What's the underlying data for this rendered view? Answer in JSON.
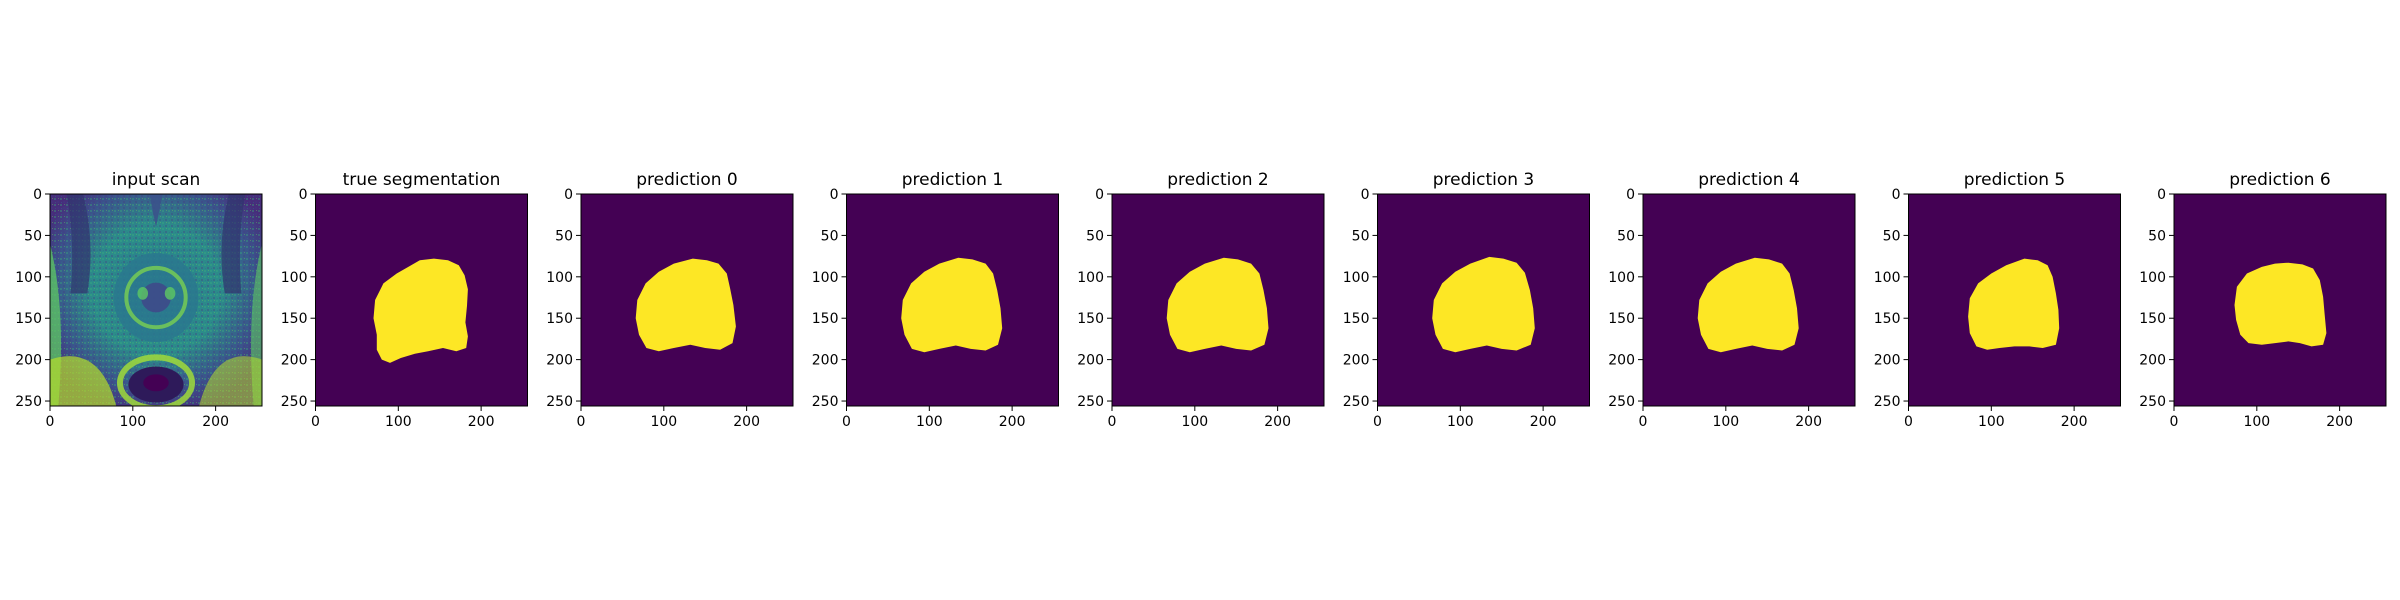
{
  "chart_data": {
    "type": "heatmap",
    "colormap": "viridis",
    "panels": [
      {
        "title": "input scan",
        "kind": "mri",
        "xticks": [
          0,
          100,
          200
        ],
        "yticks": [
          0,
          50,
          100,
          150,
          200,
          250
        ],
        "xlim": [
          0,
          256
        ],
        "ylim": [
          256,
          0
        ]
      },
      {
        "title": "true segmentation",
        "kind": "mask",
        "mask": [
          [
            143,
            78
          ],
          [
            160,
            80
          ],
          [
            173,
            86
          ],
          [
            180,
            98
          ],
          [
            184,
            115
          ],
          [
            183,
            135
          ],
          [
            181,
            155
          ],
          [
            184,
            172
          ],
          [
            182,
            186
          ],
          [
            170,
            190
          ],
          [
            154,
            186
          ],
          [
            136,
            190
          ],
          [
            120,
            193
          ],
          [
            103,
            198
          ],
          [
            90,
            204
          ],
          [
            80,
            200
          ],
          [
            74,
            188
          ],
          [
            74,
            170
          ],
          [
            70,
            150
          ],
          [
            72,
            128
          ],
          [
            82,
            108
          ],
          [
            98,
            96
          ],
          [
            112,
            88
          ],
          [
            126,
            80
          ]
        ],
        "xticks": [
          0,
          100,
          200
        ],
        "yticks": [
          0,
          50,
          100,
          150,
          200,
          250
        ],
        "xlim": [
          0,
          256
        ],
        "ylim": [
          256,
          0
        ]
      },
      {
        "title": "prediction 0",
        "kind": "mask",
        "mask": [
          [
            135,
            78
          ],
          [
            152,
            80
          ],
          [
            166,
            84
          ],
          [
            176,
            96
          ],
          [
            180,
            114
          ],
          [
            184,
            134
          ],
          [
            187,
            160
          ],
          [
            183,
            180
          ],
          [
            168,
            188
          ],
          [
            150,
            186
          ],
          [
            132,
            182
          ],
          [
            112,
            186
          ],
          [
            94,
            190
          ],
          [
            79,
            186
          ],
          [
            70,
            170
          ],
          [
            66,
            150
          ],
          [
            68,
            128
          ],
          [
            78,
            108
          ],
          [
            94,
            94
          ],
          [
            112,
            84
          ]
        ],
        "xticks": [
          0,
          100,
          200
        ],
        "yticks": [
          0,
          50,
          100,
          150,
          200,
          250
        ],
        "xlim": [
          0,
          256
        ],
        "ylim": [
          256,
          0
        ]
      },
      {
        "title": "prediction 1",
        "kind": "mask",
        "mask": [
          [
            135,
            77
          ],
          [
            152,
            79
          ],
          [
            168,
            84
          ],
          [
            177,
            96
          ],
          [
            182,
            116
          ],
          [
            186,
            138
          ],
          [
            188,
            162
          ],
          [
            183,
            182
          ],
          [
            168,
            189
          ],
          [
            150,
            187
          ],
          [
            132,
            183
          ],
          [
            112,
            187
          ],
          [
            94,
            191
          ],
          [
            79,
            187
          ],
          [
            70,
            170
          ],
          [
            66,
            150
          ],
          [
            68,
            128
          ],
          [
            78,
            108
          ],
          [
            94,
            94
          ],
          [
            112,
            84
          ]
        ],
        "xticks": [
          0,
          100,
          200
        ],
        "yticks": [
          0,
          50,
          100,
          150,
          200,
          250
        ],
        "xlim": [
          0,
          256
        ],
        "ylim": [
          256,
          0
        ]
      },
      {
        "title": "prediction 2",
        "kind": "mask",
        "mask": [
          [
            135,
            77
          ],
          [
            152,
            79
          ],
          [
            168,
            84
          ],
          [
            178,
            96
          ],
          [
            183,
            116
          ],
          [
            187,
            138
          ],
          [
            189,
            162
          ],
          [
            184,
            182
          ],
          [
            168,
            189
          ],
          [
            150,
            187
          ],
          [
            132,
            183
          ],
          [
            112,
            187
          ],
          [
            94,
            191
          ],
          [
            79,
            187
          ],
          [
            70,
            170
          ],
          [
            66,
            150
          ],
          [
            68,
            128
          ],
          [
            78,
            108
          ],
          [
            94,
            94
          ],
          [
            112,
            84
          ]
        ],
        "xticks": [
          0,
          100,
          200
        ],
        "yticks": [
          0,
          50,
          100,
          150,
          200,
          250
        ],
        "xlim": [
          0,
          256
        ],
        "ylim": [
          256,
          0
        ]
      },
      {
        "title": "prediction 3",
        "kind": "mask",
        "mask": [
          [
            135,
            76
          ],
          [
            152,
            78
          ],
          [
            168,
            83
          ],
          [
            178,
            95
          ],
          [
            184,
            116
          ],
          [
            188,
            138
          ],
          [
            190,
            162
          ],
          [
            185,
            182
          ],
          [
            168,
            189
          ],
          [
            150,
            187
          ],
          [
            132,
            183
          ],
          [
            112,
            187
          ],
          [
            94,
            191
          ],
          [
            79,
            187
          ],
          [
            70,
            170
          ],
          [
            66,
            150
          ],
          [
            68,
            128
          ],
          [
            78,
            108
          ],
          [
            94,
            94
          ],
          [
            112,
            84
          ]
        ],
        "xticks": [
          0,
          100,
          200
        ],
        "yticks": [
          0,
          50,
          100,
          150,
          200,
          250
        ],
        "xlim": [
          0,
          256
        ],
        "ylim": [
          256,
          0
        ]
      },
      {
        "title": "prediction 4",
        "kind": "mask",
        "mask": [
          [
            135,
            77
          ],
          [
            152,
            79
          ],
          [
            168,
            84
          ],
          [
            177,
            96
          ],
          [
            182,
            116
          ],
          [
            186,
            138
          ],
          [
            188,
            162
          ],
          [
            183,
            182
          ],
          [
            168,
            189
          ],
          [
            150,
            187
          ],
          [
            132,
            183
          ],
          [
            112,
            187
          ],
          [
            94,
            191
          ],
          [
            79,
            187
          ],
          [
            70,
            170
          ],
          [
            66,
            150
          ],
          [
            68,
            128
          ],
          [
            78,
            108
          ],
          [
            94,
            94
          ],
          [
            112,
            84
          ]
        ],
        "xticks": [
          0,
          100,
          200
        ],
        "yticks": [
          0,
          50,
          100,
          150,
          200,
          250
        ],
        "xlim": [
          0,
          256
        ],
        "ylim": [
          256,
          0
        ]
      },
      {
        "title": "prediction 5",
        "kind": "mask",
        "mask": [
          [
            140,
            78
          ],
          [
            156,
            80
          ],
          [
            168,
            86
          ],
          [
            174,
            100
          ],
          [
            178,
            120
          ],
          [
            181,
            140
          ],
          [
            182,
            162
          ],
          [
            178,
            182
          ],
          [
            162,
            186
          ],
          [
            146,
            184
          ],
          [
            128,
            184
          ],
          [
            110,
            186
          ],
          [
            95,
            188
          ],
          [
            82,
            184
          ],
          [
            74,
            168
          ],
          [
            72,
            148
          ],
          [
            74,
            126
          ],
          [
            84,
            108
          ],
          [
            100,
            96
          ],
          [
            118,
            86
          ]
        ],
        "xticks": [
          0,
          100,
          200
        ],
        "yticks": [
          0,
          50,
          100,
          150,
          200,
          250
        ],
        "xlim": [
          0,
          256
        ],
        "ylim": [
          256,
          0
        ]
      },
      {
        "title": "prediction 6",
        "kind": "mask",
        "mask": [
          [
            138,
            83
          ],
          [
            155,
            85
          ],
          [
            168,
            90
          ],
          [
            176,
            104
          ],
          [
            180,
            124
          ],
          [
            182,
            146
          ],
          [
            184,
            168
          ],
          [
            180,
            182
          ],
          [
            166,
            184
          ],
          [
            152,
            180
          ],
          [
            138,
            178
          ],
          [
            122,
            180
          ],
          [
            106,
            182
          ],
          [
            90,
            180
          ],
          [
            80,
            170
          ],
          [
            75,
            152
          ],
          [
            73,
            134
          ],
          [
            76,
            112
          ],
          [
            88,
            96
          ],
          [
            106,
            88
          ],
          [
            122,
            84
          ]
        ],
        "xticks": [
          0,
          100,
          200
        ],
        "yticks": [
          0,
          50,
          100,
          150,
          200,
          250
        ],
        "xlim": [
          0,
          256
        ],
        "ylim": [
          256,
          0
        ]
      }
    ]
  }
}
